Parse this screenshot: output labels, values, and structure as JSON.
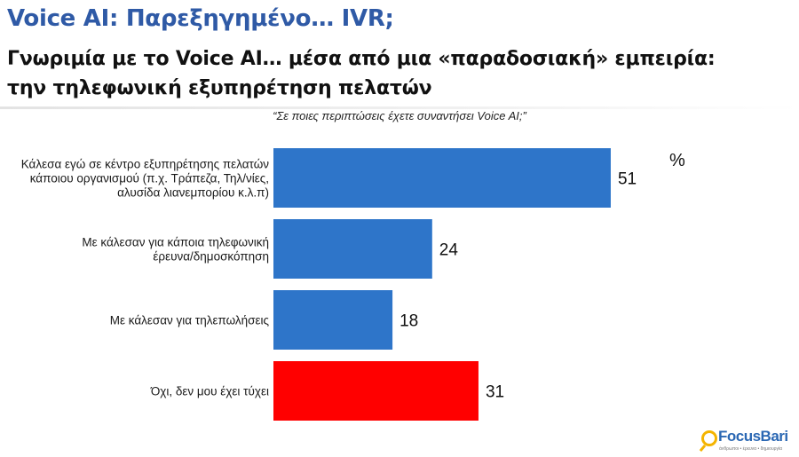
{
  "header": {
    "title": "Voice AI: Παρεξηγημένο… IVR;",
    "subtitle_line1": "Γνωριμία με το Voice AI… μέσα από μια «παραδοσιακή» εμπειρία:",
    "subtitle_line2": "την τηλεφωνική εξυπηρέτηση πελατών"
  },
  "question": "“Σε ποιες περιπτώσεις έχετε συναντήσει Voice AI;”",
  "unit": "%",
  "colors": {
    "title": "#2f5aa6",
    "bar_default": "#2e75c9",
    "bar_highlight": "#ff0000"
  },
  "chart_data": {
    "type": "bar",
    "orientation": "horizontal",
    "categories": [
      "Κάλεσα εγώ σε κέντρο εξυπηρέτησης πελατών κάποιου οργανισμού (π.χ. Τράπεζα, Τηλ/νίες, αλυσίδα λιανεμπορίου κ.λ.π)",
      "Με κάλεσαν για κάποια τηλεφωνική έρευνα/δημοσκόπηση",
      "Με κάλεσαν για τηλεπωλήσεις",
      "Όχι, δεν μου έχει τύχει"
    ],
    "category_lines": [
      [
        "Κάλεσα εγώ σε κέντρο εξυπηρέτησης πελατών",
        "κάποιου οργανισμού (π.χ. Τράπεζα, Τηλ/νίες,",
        "αλυσίδα λιανεμπορίου κ.λ.π)"
      ],
      [
        "Με κάλεσαν για κάποια τηλεφωνική",
        "έρευνα/δημοσκόπηση"
      ],
      [
        "Με κάλεσαν για τηλεπωλήσεις"
      ],
      [
        "Όχι, δεν μου έχει τύχει"
      ]
    ],
    "values": [
      51,
      24,
      18,
      31
    ],
    "bar_colors": [
      "#2e75c9",
      "#2e75c9",
      "#2e75c9",
      "#ff0000"
    ],
    "unit": "%",
    "xlim": [
      0,
      100
    ],
    "grid": false,
    "legend": "none"
  },
  "logo": {
    "name": "FocusBari",
    "tagline": "άνθρωποι • έρευνα • δημιουργία"
  }
}
